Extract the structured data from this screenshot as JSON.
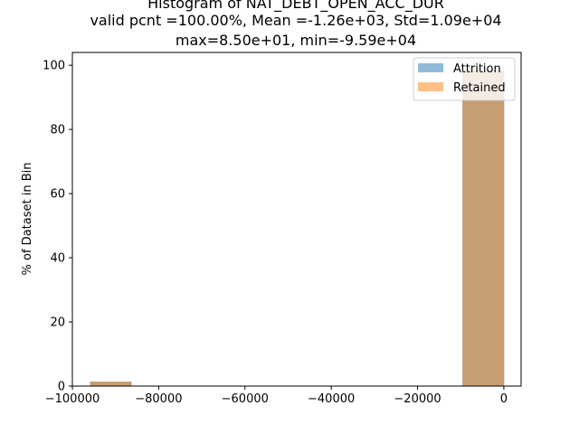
{
  "chart_data": {
    "type": "bar",
    "title_lines": [
      "Histogram of NAT_DEBT_OPEN_ACC_DUR",
      "valid pcnt =100.00%, Mean =-1.26e+03, Std=1.09e+04",
      "max=8.50e+01, min=-9.59e+04"
    ],
    "xlabel": "",
    "ylabel": "% of Dataset in Bin",
    "xlim": [
      -100000,
      4000
    ],
    "ylim": [
      0,
      104
    ],
    "x_ticks": [
      -100000,
      -80000,
      -60000,
      -40000,
      -20000,
      0
    ],
    "x_tick_labels": [
      "−100000",
      "−80000",
      "−60000",
      "−40000",
      "−20000",
      "0"
    ],
    "y_ticks": [
      0,
      20,
      40,
      60,
      80,
      100
    ],
    "y_tick_labels": [
      "0",
      "20",
      "40",
      "60",
      "80",
      "100"
    ],
    "grid": false,
    "legend_position": "top-right",
    "series": [
      {
        "name": "Attrition",
        "color": "#1f77b4",
        "opacity": 0.5,
        "bins": [
          {
            "x0": -95900,
            "x1": -86300,
            "value": 1.4
          },
          {
            "x0": -9600,
            "x1": 85,
            "value": 98.6
          }
        ]
      },
      {
        "name": "Retained",
        "color": "#ff7f0e",
        "opacity": 0.5,
        "bins": [
          {
            "x0": -95900,
            "x1": -86300,
            "value": 1.4
          },
          {
            "x0": -9600,
            "x1": 85,
            "value": 98.6
          }
        ]
      }
    ]
  }
}
